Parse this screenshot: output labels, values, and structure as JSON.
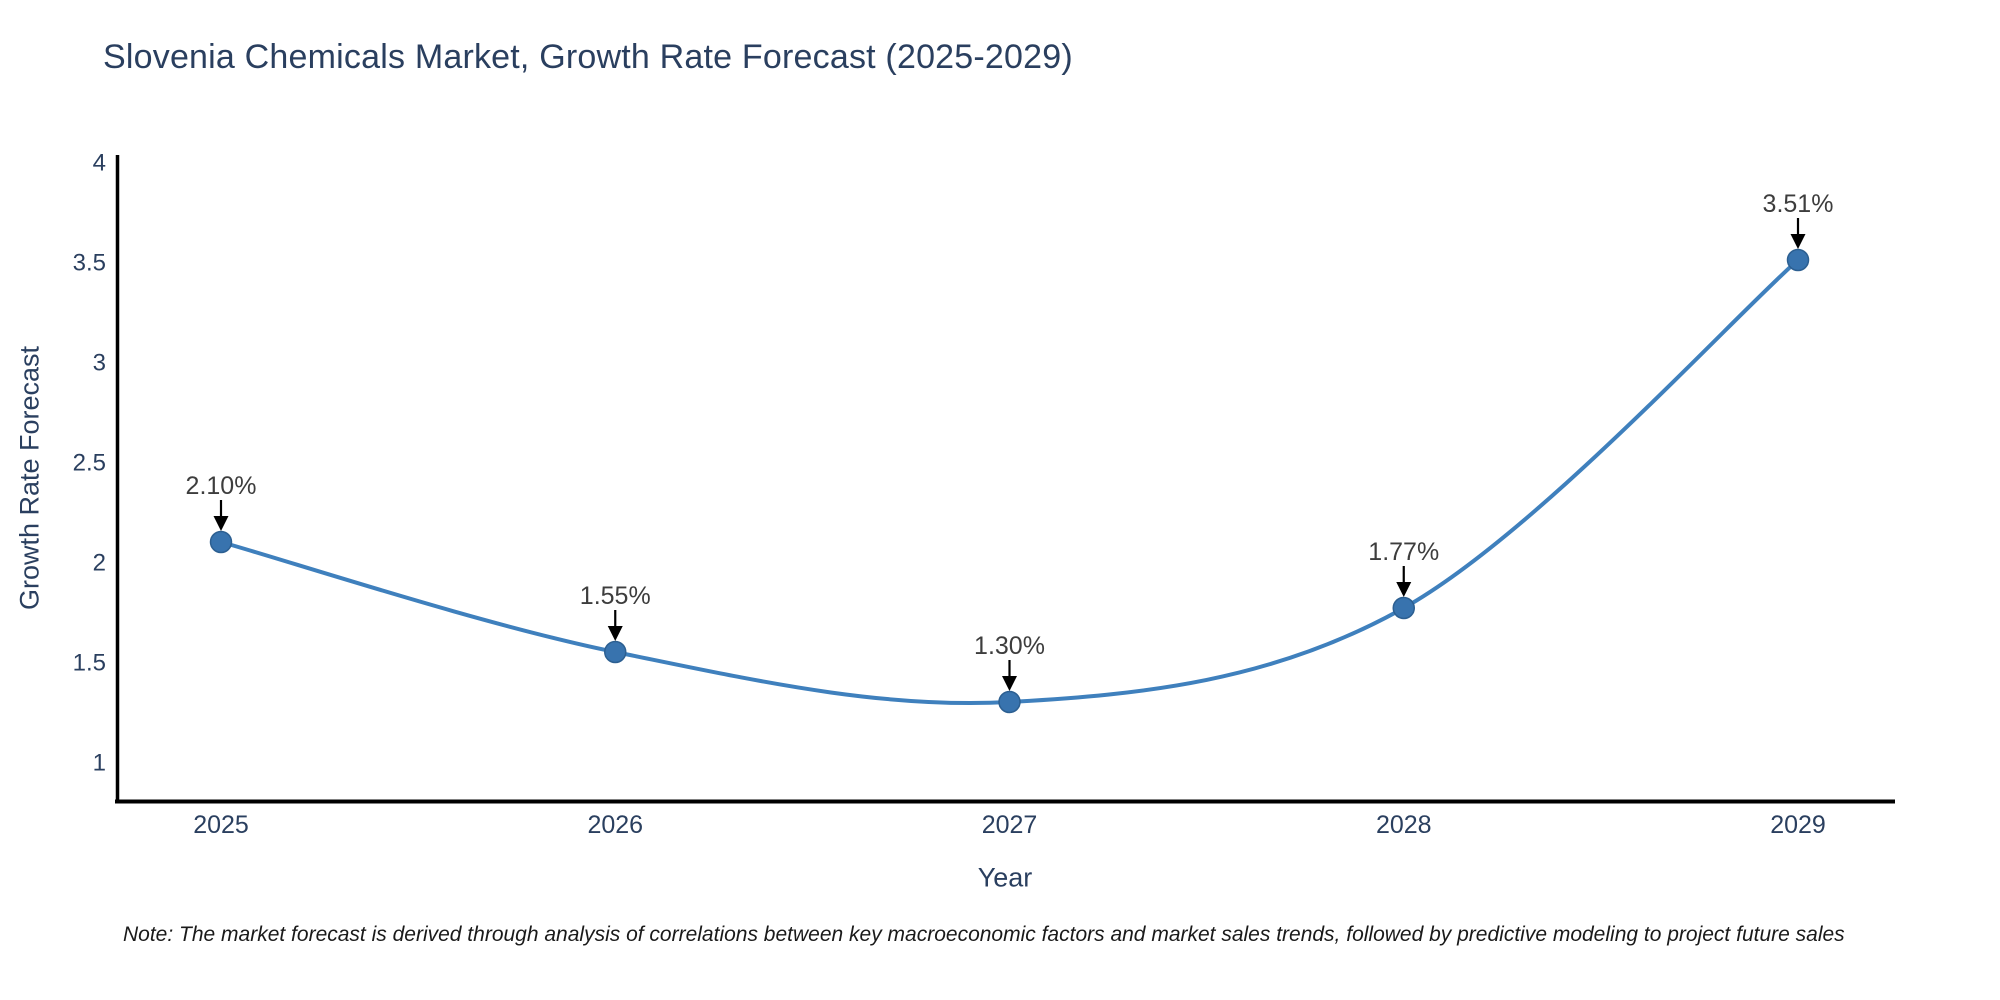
{
  "chart_data": {
    "type": "line",
    "title": "Slovenia Chemicals Market, Growth Rate Forecast (2025-2029)",
    "x": [
      2025,
      2026,
      2027,
      2028,
      2029
    ],
    "series": [
      {
        "name": "Growth Rate Forecast",
        "values": [
          2.1,
          1.55,
          1.3,
          1.77,
          3.51
        ]
      }
    ],
    "point_labels": [
      "2.10%",
      "1.55%",
      "1.30%",
      "1.77%",
      "3.51%"
    ],
    "xlabel": "Year",
    "ylabel": "Growth Rate Forecast",
    "xticks": [
      "2025",
      "2026",
      "2027",
      "2028",
      "2029"
    ],
    "yticks": [
      "1",
      "1.5",
      "2",
      "2.5",
      "3",
      "3.5",
      "4"
    ],
    "ytick_values": [
      1,
      1.5,
      2,
      2.5,
      3,
      3.5,
      4
    ],
    "ylim": [
      0.8,
      4.02
    ],
    "xlim": [
      2024.73,
      2029.25
    ],
    "grid": false,
    "legend_position": "none",
    "line_shape": "spline",
    "annotation_style": "value-label-with-down-arrow",
    "colors": {
      "line": "#3f80bd",
      "marker": "#3873ae",
      "marker_edge": "#2c5f91",
      "axis_line": "#000000",
      "axis_text": "#2a3f5f",
      "annotation_text": "#3d3d3d",
      "arrow": "#000000",
      "background": "#ffffff"
    }
  },
  "note": {
    "text": "Note: The market forecast is derived through analysis of correlations between key macroeconomic factors and market sales trends, followed by predictive modeling to project future sales"
  }
}
